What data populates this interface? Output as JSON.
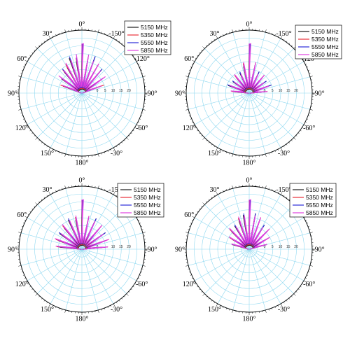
{
  "colors": {
    "5150 MHz": "#1a1a1a",
    "5350 MHz": "#e8303a",
    "5550 MHz": "#2b2bd8",
    "5850 MHz": "#e040e0",
    "grid": "#8fd8f0"
  },
  "chart_data": [
    {
      "type": "polar",
      "angle_labels": [
        "0°",
        "30°",
        "60°",
        "90°",
        "120°",
        "150°",
        "180°",
        "-30°",
        "-60°",
        "-90°",
        "-120°",
        "-150°"
      ],
      "radial_tick_labels": [
        "0",
        "5",
        "10",
        "15",
        "20"
      ],
      "rlim": [
        0,
        20
      ],
      "grid": true,
      "legend_position": "top-right",
      "series": [
        {
          "name": "5150 MHz",
          "theta_deg": [
            0,
            10,
            20,
            30,
            40,
            55,
            70
          ],
          "r_dB": [
            19,
            13,
            15,
            12,
            11,
            10,
            8
          ]
        },
        {
          "name": "5350 MHz",
          "theta_deg": [
            0,
            10,
            20,
            30,
            40,
            55,
            70
          ],
          "r_dB": [
            19,
            14,
            14,
            13,
            12,
            9,
            9
          ]
        },
        {
          "name": "5550 MHz",
          "theta_deg": [
            0,
            10,
            20,
            30,
            40,
            55,
            70
          ],
          "r_dB": [
            19,
            14,
            15,
            11,
            12,
            10,
            7
          ]
        },
        {
          "name": "5850 MHz",
          "theta_deg": [
            0,
            10,
            20,
            30,
            40,
            55,
            70
          ],
          "r_dB": [
            19,
            15,
            13,
            13,
            11,
            11,
            8
          ]
        }
      ]
    },
    {
      "type": "polar",
      "angle_labels": [
        "0°",
        "30°",
        "60°",
        "90°",
        "120°",
        "150°",
        "180°",
        "-30°",
        "-60°",
        "-90°",
        "-120°",
        "-150°"
      ],
      "radial_tick_labels": [
        "0",
        "5",
        "10",
        "15",
        "20"
      ],
      "rlim": [
        0,
        20
      ],
      "grid": true,
      "legend_position": "top-right",
      "series": [
        {
          "name": "5150 MHz",
          "theta_deg": [
            0,
            12,
            25,
            40,
            55,
            70,
            85
          ],
          "r_dB": [
            19,
            11,
            9,
            8,
            8,
            9,
            6
          ]
        },
        {
          "name": "5350 MHz",
          "theta_deg": [
            0,
            12,
            25,
            40,
            55,
            70,
            85
          ],
          "r_dB": [
            19,
            12,
            8,
            9,
            7,
            8,
            7
          ]
        },
        {
          "name": "5550 MHz",
          "theta_deg": [
            0,
            12,
            25,
            40,
            55,
            70,
            85
          ],
          "r_dB": [
            19,
            11,
            9,
            8,
            8,
            9,
            6
          ]
        },
        {
          "name": "5850 MHz",
          "theta_deg": [
            0,
            12,
            25,
            40,
            55,
            70,
            85
          ],
          "r_dB": [
            19,
            12,
            8,
            9,
            7,
            8,
            7
          ]
        }
      ]
    },
    {
      "type": "polar",
      "angle_labels": [
        "0°",
        "30°",
        "60°",
        "90°",
        "120°",
        "150°",
        "180°",
        "-30°",
        "-60°",
        "-90°",
        "-120°",
        "-150°"
      ],
      "radial_tick_labels": [
        "0",
        "10",
        "15",
        "20"
      ],
      "rlim": [
        0,
        20
      ],
      "grid": true,
      "legend_position": "top-right",
      "series": [
        {
          "name": "5150 MHz",
          "theta_deg": [
            0,
            12,
            25,
            40,
            55,
            70,
            85
          ],
          "r_dB": [
            19,
            12,
            13,
            11,
            11,
            10,
            9
          ]
        },
        {
          "name": "5350 MHz",
          "theta_deg": [
            0,
            12,
            25,
            40,
            55,
            70,
            85
          ],
          "r_dB": [
            19,
            13,
            12,
            12,
            10,
            11,
            10
          ]
        },
        {
          "name": "5550 MHz",
          "theta_deg": [
            0,
            12,
            25,
            40,
            55,
            70,
            85
          ],
          "r_dB": [
            19,
            12,
            13,
            11,
            11,
            10,
            9
          ]
        },
        {
          "name": "5850 MHz",
          "theta_deg": [
            0,
            12,
            25,
            40,
            55,
            70,
            85
          ],
          "r_dB": [
            19,
            13,
            12,
            12,
            10,
            11,
            10
          ]
        }
      ]
    },
    {
      "type": "polar",
      "angle_labels": [
        "0°",
        "30°",
        "60°",
        "90°",
        "120°",
        "150°",
        "180°",
        "-30°",
        "-60°",
        "-90°",
        "-120°",
        "-150°"
      ],
      "radial_tick_labels": [
        "0",
        "5",
        "10",
        "15",
        "20"
      ],
      "rlim": [
        0,
        20
      ],
      "grid": true,
      "legend_position": "top-right",
      "series": [
        {
          "name": "5150 MHz",
          "theta_deg": [
            0,
            10,
            20,
            32,
            45,
            60,
            75
          ],
          "r_dB": [
            19,
            14,
            12,
            11,
            10,
            8,
            7
          ]
        },
        {
          "name": "5350 MHz",
          "theta_deg": [
            0,
            10,
            20,
            32,
            45,
            60,
            75
          ],
          "r_dB": [
            19,
            13,
            13,
            10,
            11,
            9,
            7
          ]
        },
        {
          "name": "5550 MHz",
          "theta_deg": [
            0,
            10,
            20,
            32,
            45,
            60,
            75
          ],
          "r_dB": [
            19,
            14,
            12,
            11,
            10,
            8,
            7
          ]
        },
        {
          "name": "5850 MHz",
          "theta_deg": [
            0,
            10,
            20,
            32,
            45,
            60,
            75
          ],
          "r_dB": [
            19,
            13,
            13,
            10,
            11,
            9,
            7
          ]
        }
      ]
    }
  ]
}
